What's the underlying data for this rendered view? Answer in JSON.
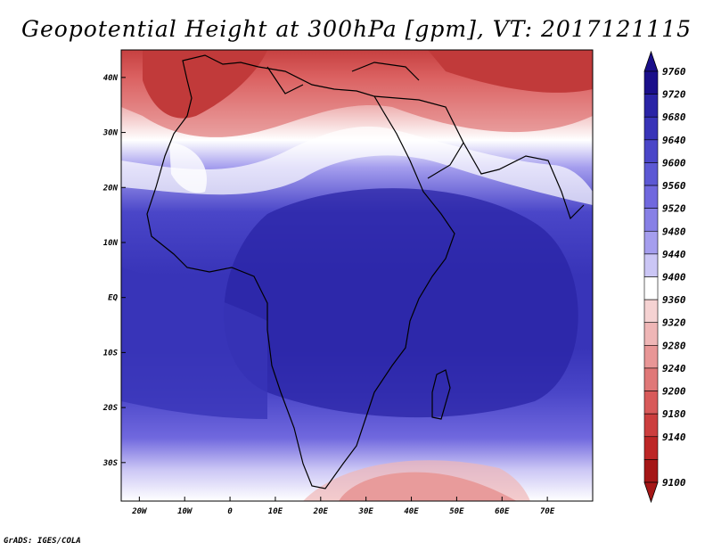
{
  "title": "Geopotential Height at 300hPa [gpm], VT: 2017121115",
  "footer": "GrADS: IGES/COLA",
  "map": {
    "lon_range": [
      -24,
      80
    ],
    "lat_range": [
      -37,
      45
    ],
    "lon_ticks": [
      {
        "value": -20,
        "label": "20W"
      },
      {
        "value": -10,
        "label": "10W"
      },
      {
        "value": 0,
        "label": "0"
      },
      {
        "value": 10,
        "label": "10E"
      },
      {
        "value": 20,
        "label": "20E"
      },
      {
        "value": 30,
        "label": "30E"
      },
      {
        "value": 40,
        "label": "40E"
      },
      {
        "value": 50,
        "label": "50E"
      },
      {
        "value": 60,
        "label": "60E"
      },
      {
        "value": 70,
        "label": "70E"
      }
    ],
    "lat_ticks": [
      {
        "value": 40,
        "label": "40N"
      },
      {
        "value": 30,
        "label": "30N"
      },
      {
        "value": 20,
        "label": "20N"
      },
      {
        "value": 10,
        "label": "10N"
      },
      {
        "value": 0,
        "label": "EQ"
      },
      {
        "value": -10,
        "label": "10S"
      },
      {
        "value": -20,
        "label": "20S"
      },
      {
        "value": -30,
        "label": "30S"
      }
    ]
  },
  "colorbar": {
    "levels": [
      {
        "label": "9760",
        "color": "#1a0f8a"
      },
      {
        "label": "9720",
        "color": "#2a24a6"
      },
      {
        "label": "9680",
        "color": "#3834b8"
      },
      {
        "label": "9640",
        "color": "#4a46c8"
      },
      {
        "label": "9600",
        "color": "#5c58d4"
      },
      {
        "label": "9560",
        "color": "#7068de"
      },
      {
        "label": "9520",
        "color": "#8780e6"
      },
      {
        "label": "9480",
        "color": "#a59eee"
      },
      {
        "label": "9440",
        "color": "#cbc6f5"
      },
      {
        "label": "9400",
        "color": "#ffffff"
      },
      {
        "label": "9360",
        "color": "#f5d2d2"
      },
      {
        "label": "9320",
        "color": "#efb6b6"
      },
      {
        "label": "9280",
        "color": "#e89696"
      },
      {
        "label": "9240",
        "color": "#e07878"
      },
      {
        "label": "9200",
        "color": "#d85a5a"
      },
      {
        "label": "9180",
        "color": "#cc3e3e"
      },
      {
        "label": "9140",
        "color": "#bd2626"
      },
      {
        "label": "9100",
        "color": "#a51616"
      }
    ]
  }
}
